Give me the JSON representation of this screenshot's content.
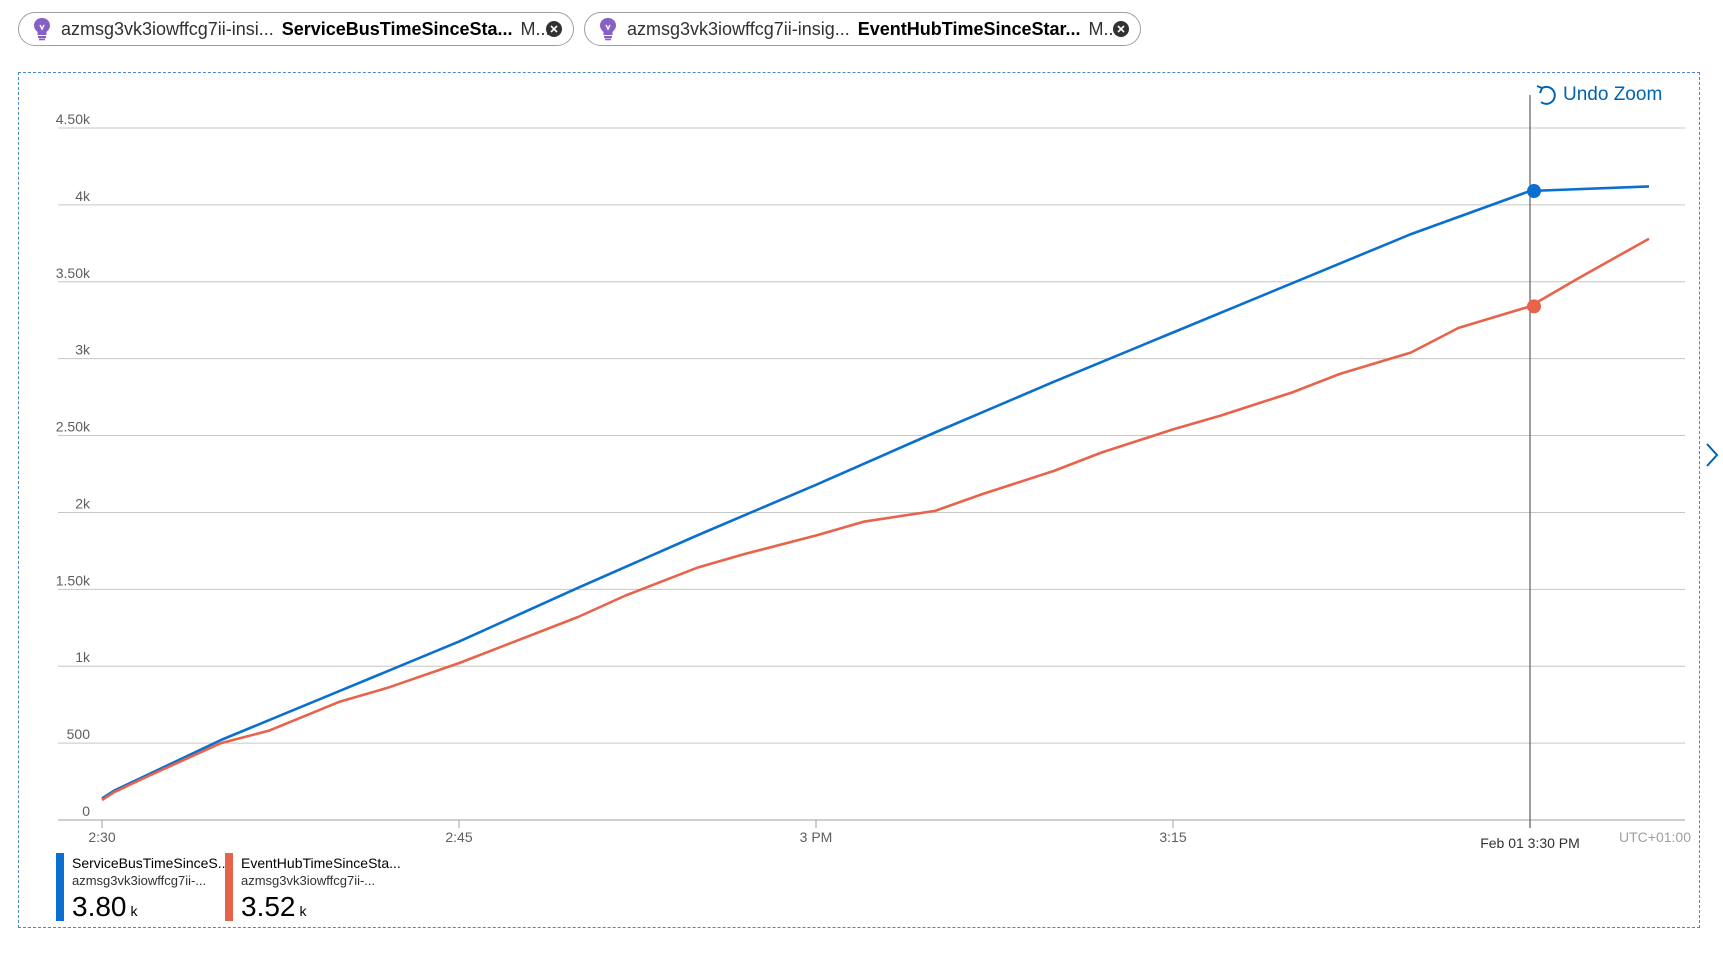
{
  "pills": [
    {
      "resource": "azmsg3vk3iowffcg7ii-insi...",
      "metric": "ServiceBusTimeSinceSta...",
      "agg": "M..."
    },
    {
      "resource": "azmsg3vk3iowffcg7ii-insig...",
      "metric": "EventHubTimeSinceStar...",
      "agg": "M..."
    }
  ],
  "undo_label": "Undo Zoom",
  "timezone": "UTC+01:00",
  "hover_label": "Feb 01 3:30 PM",
  "colors": {
    "series1": "#0a6fce",
    "series2": "#e8634c",
    "bulb": "#8661c5",
    "grid": "#c8c6c4"
  },
  "legend": [
    {
      "name": "ServiceBusTimeSinceS...",
      "resource": "azmsg3vk3iowffcg7ii-...",
      "value": "3.80",
      "unit": "k"
    },
    {
      "name": "EventHubTimeSinceSta...",
      "resource": "azmsg3vk3iowffcg7ii-...",
      "value": "3.52",
      "unit": "k"
    }
  ],
  "chart_data": {
    "type": "line",
    "x_ticks": [
      "2:30",
      "2:45",
      "3 PM",
      "3:15"
    ],
    "x_minutes": [
      0,
      15,
      30,
      45
    ],
    "x_range_minutes": [
      0,
      65
    ],
    "y_ticks": [
      "0",
      "500",
      "1k",
      "1.50k",
      "2k",
      "2.50k",
      "3k",
      "3.50k",
      "4k",
      "4.50k"
    ],
    "y_tick_values": [
      0,
      500,
      1000,
      1500,
      2000,
      2500,
      3000,
      3500,
      4000,
      4500
    ],
    "ylim": [
      0,
      4500
    ],
    "grid": true,
    "hover_minute": 60,
    "series": [
      {
        "name": "ServiceBusTimeSinceS...",
        "x": [
          0,
          0.5,
          5,
          10,
          15,
          20,
          25,
          30,
          35,
          40,
          45,
          50,
          55,
          60,
          65
        ],
        "y": [
          140,
          190,
          520,
          840,
          1160,
          1510,
          1850,
          2180,
          2520,
          2850,
          3170,
          3490,
          3810,
          4090,
          4120
        ]
      },
      {
        "name": "EventHubTimeSinceSta...",
        "x": [
          0,
          0.5,
          2,
          5,
          7,
          10,
          12,
          15,
          17,
          20,
          22,
          25,
          27,
          30,
          32,
          35,
          37,
          40,
          42,
          45,
          47,
          50,
          52,
          55,
          57,
          60,
          62,
          65
        ],
        "y": [
          130,
          180,
          290,
          500,
          580,
          770,
          860,
          1020,
          1140,
          1320,
          1460,
          1640,
          1730,
          1850,
          1940,
          2010,
          2120,
          2270,
          2390,
          2540,
          2630,
          2780,
          2900,
          3040,
          3200,
          3340,
          3520,
          3780
        ]
      }
    ]
  }
}
